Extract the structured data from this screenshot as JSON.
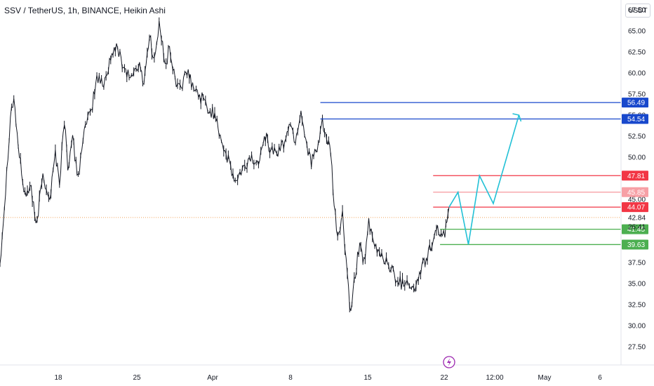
{
  "header": {
    "title": "SSV / TetherUS, 1h, BINANCE, Heikin Ashi",
    "currency_button": "USDT"
  },
  "colors": {
    "candles": "#131722",
    "price_line": "#f0a45c",
    "blue_line": "#1848cc",
    "red_line": "#f23645",
    "light_red_line": "#f7a0a6",
    "green_line": "#4caf50",
    "projection": "#22c1d6",
    "event_icon": "#9c27b0"
  },
  "chart_data": {
    "type": "line",
    "title": "SSV / TetherUS, 1h, BINANCE, Heikin Ashi",
    "y_ticks": [
      67.5,
      65.0,
      62.5,
      60.0,
      57.5,
      55.0,
      52.5,
      50.0,
      45.0,
      37.5,
      35.0,
      32.5,
      30.0,
      27.5
    ],
    "y_tick_labels": [
      "67.50",
      "65.00",
      "62.50",
      "60.00",
      "57.50",
      "55.00",
      "52.50",
      "50.00",
      "45.00",
      "37.50",
      "35.00",
      "32.50",
      "30.00",
      "27.50"
    ],
    "ylim": [
      26.5,
      69.0
    ],
    "x_tick_labels": [
      "18",
      "25",
      "Apr",
      "8",
      "15",
      "22",
      "12:00",
      "May",
      "6"
    ],
    "current_price": {
      "label": "42.84",
      "value": 42.84,
      "countdown": "26:41"
    },
    "price_path_days": [
      [
        0,
        37.5
      ],
      [
        0.8,
        46
      ],
      [
        1.5,
        55
      ],
      [
        2,
        57
      ],
      [
        2.8,
        50
      ],
      [
        3.6,
        45.5
      ],
      [
        4.5,
        46.5
      ],
      [
        5.2,
        41.5
      ],
      [
        6.2,
        48
      ],
      [
        7.2,
        45
      ],
      [
        8,
        50.5
      ],
      [
        8.6,
        47
      ],
      [
        9.3,
        54.5
      ],
      [
        9.8,
        49
      ],
      [
        10.5,
        52
      ],
      [
        11.3,
        47.5
      ],
      [
        12,
        52.5
      ],
      [
        13.2,
        55.5
      ],
      [
        14,
        59.5
      ],
      [
        15,
        58.5
      ],
      [
        16,
        62
      ],
      [
        17,
        63
      ],
      [
        18,
        60.5
      ],
      [
        19,
        59.5
      ],
      [
        20,
        61
      ],
      [
        20.8,
        59
      ],
      [
        21.6,
        64.5
      ],
      [
        22.3,
        61.5
      ],
      [
        23,
        65.5
      ],
      [
        24,
        61
      ],
      [
        24.5,
        63
      ],
      [
        25.3,
        59
      ],
      [
        26.2,
        58.5
      ],
      [
        27.2,
        60
      ],
      [
        28,
        58
      ],
      [
        29.2,
        57
      ],
      [
        30.2,
        55.5
      ],
      [
        31.2,
        55
      ],
      [
        32,
        52
      ],
      [
        33,
        49.5
      ],
      [
        34,
        47
      ],
      [
        35.2,
        48.5
      ],
      [
        36.2,
        50
      ],
      [
        37.2,
        49
      ],
      [
        38.2,
        53
      ],
      [
        39,
        51
      ],
      [
        40,
        50.5
      ],
      [
        41,
        51.5
      ],
      [
        41.8,
        54
      ],
      [
        42.7,
        52
      ],
      [
        43.5,
        55.5
      ],
      [
        44.2,
        52
      ],
      [
        45,
        49.5
      ],
      [
        46,
        51
      ],
      [
        46.6,
        54.5
      ],
      [
        47.2,
        52
      ],
      [
        47.8,
        50.5
      ],
      [
        48.3,
        44
      ],
      [
        48.8,
        40.5
      ],
      [
        49.5,
        43
      ],
      [
        50.2,
        36
      ],
      [
        50.7,
        31
      ],
      [
        51.2,
        35
      ],
      [
        52,
        40
      ],
      [
        52.6,
        37.5
      ],
      [
        53.3,
        42
      ],
      [
        54,
        39.5
      ],
      [
        55,
        38.5
      ],
      [
        56,
        37.5
      ],
      [
        57,
        36
      ],
      [
        58,
        35
      ],
      [
        59,
        35.5
      ],
      [
        59.8,
        34
      ],
      [
        60.8,
        36.5
      ],
      [
        61.6,
        38
      ],
      [
        62.6,
        40
      ],
      [
        63.4,
        41.5
      ],
      [
        64.3,
        40.5
      ],
      [
        64.9,
        44.07
      ]
    ],
    "levels": [
      {
        "name": "resistance-56",
        "label": "56.49",
        "value": 56.49,
        "from_day": 46.3,
        "color": "#1848cc"
      },
      {
        "name": "resistance-54",
        "label": "54.54",
        "value": 54.54,
        "from_day": 46.3,
        "color": "#1848cc"
      },
      {
        "name": "resistance-47",
        "label": "47.81",
        "value": 47.81,
        "from_day": 62.6,
        "color": "#f23645"
      },
      {
        "name": "resistance-45",
        "label": "45.85",
        "value": 45.85,
        "from_day": 62.6,
        "color": "#f7a0a6"
      },
      {
        "name": "resistance-44",
        "label": "44.07",
        "value": 44.07,
        "from_day": 62.6,
        "color": "#f23645"
      },
      {
        "name": "support-41",
        "label": "41.45",
        "value": 41.45,
        "from_day": 63.6,
        "color": "#4caf50"
      },
      {
        "name": "support-39",
        "label": "39.63",
        "value": 39.63,
        "from_day": 63.6,
        "color": "#4caf50"
      }
    ],
    "projection_days": [
      [
        64.9,
        44.07
      ],
      [
        66.2,
        45.85
      ],
      [
        67.7,
        39.63
      ],
      [
        69.3,
        47.81
      ],
      [
        71.3,
        44.5
      ],
      [
        75.0,
        55.0
      ]
    ]
  }
}
